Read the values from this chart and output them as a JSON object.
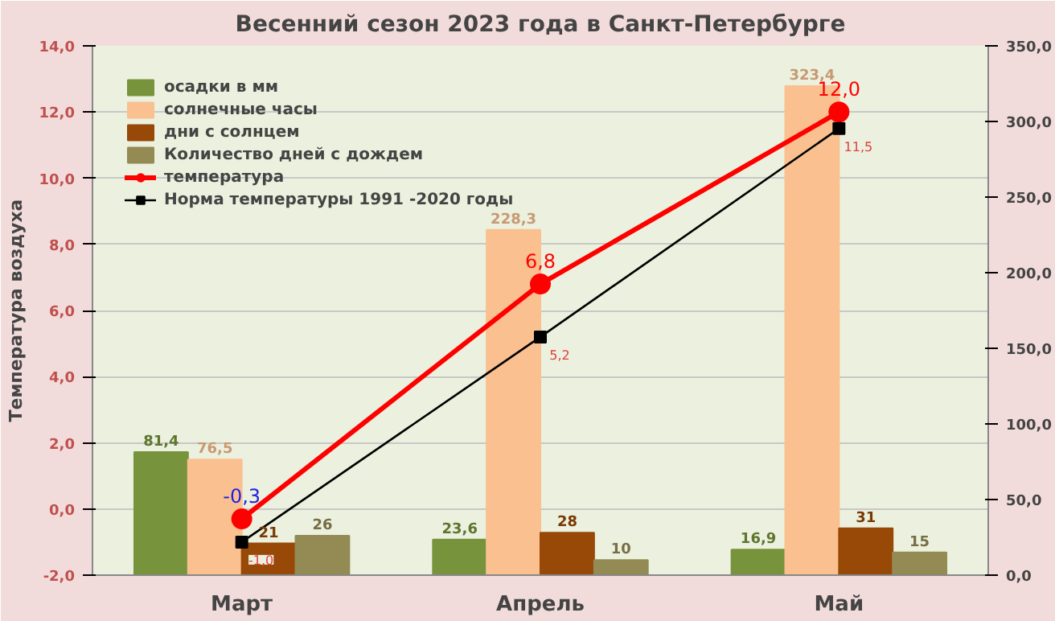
{
  "chart_data": {
    "type": "bar",
    "title": "Весенний сезон 2023 года в Санкт-Петербурге",
    "ylabel": "Температура воздуха",
    "categories": [
      "Март",
      "Апрель",
      "Май"
    ],
    "ylim": [
      -2,
      14
    ],
    "yticks": [
      {
        "value": -2,
        "label": "-2,0"
      },
      {
        "value": 0,
        "label": "0,0"
      },
      {
        "value": 2,
        "label": "2,0"
      },
      {
        "value": 4,
        "label": "4,0"
      },
      {
        "value": 6,
        "label": "6,0"
      },
      {
        "value": 8,
        "label": "8,0"
      },
      {
        "value": 10,
        "label": "10,0"
      },
      {
        "value": 12,
        "label": "12,0"
      },
      {
        "value": 14,
        "label": "14,0"
      }
    ],
    "y2lim": [
      0,
      350
    ],
    "y2ticks": [
      {
        "value": 0,
        "label": "0,0"
      },
      {
        "value": 50,
        "label": "50,0"
      },
      {
        "value": 100,
        "label": "100,0"
      },
      {
        "value": 150,
        "label": "150,0"
      },
      {
        "value": 200,
        "label": "200,0"
      },
      {
        "value": 250,
        "label": "250,0"
      },
      {
        "value": 300,
        "label": "300,0"
      },
      {
        "value": 350,
        "label": "350,0"
      }
    ],
    "grid": "y",
    "legend": "top left",
    "series": [
      {
        "name": "осадки в мм",
        "axis": "y2",
        "color": "#77933c",
        "values": [
          81.4,
          23.6,
          16.9
        ],
        "value_labels": [
          "81,4",
          "23,6",
          "16,9"
        ]
      },
      {
        "name": "солнечные часы",
        "axis": "y2",
        "color": "#fac090",
        "values": [
          76.5,
          228.3,
          323.4
        ],
        "value_labels": [
          "76,5",
          "228,3",
          "323,4"
        ]
      },
      {
        "name": "дни с солнцем",
        "axis": "y2",
        "color": "#984807",
        "values": [
          21,
          28,
          31
        ],
        "value_labels": [
          "21",
          "28",
          "31"
        ]
      },
      {
        "name": "Количество дней с дождем",
        "axis": "y2",
        "color": "#948a54",
        "values": [
          26,
          10,
          15
        ],
        "value_labels": [
          "26",
          "10",
          "15"
        ]
      },
      {
        "name": "температура",
        "type": "line",
        "marker": "circle",
        "color": "#ff0000",
        "values": [
          -0.3,
          6.8,
          12.0
        ],
        "value_labels": [
          "-0,3",
          "6,8",
          "12,0"
        ]
      },
      {
        "name": "Норма температуры 1991 -2020 годы",
        "type": "line",
        "marker": "square",
        "color": "#000000",
        "values": [
          -1.0,
          5.2,
          11.5
        ],
        "value_labels": [
          "-1,0",
          "5,2",
          "11,5"
        ]
      }
    ]
  }
}
